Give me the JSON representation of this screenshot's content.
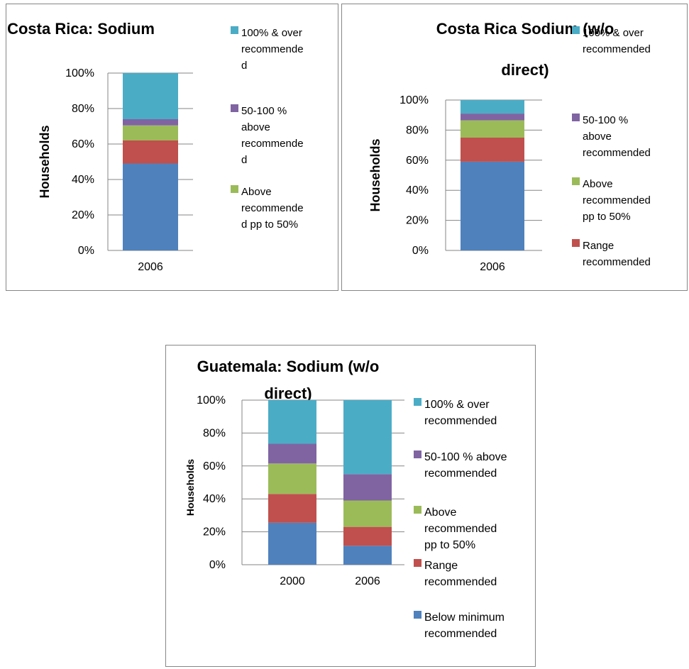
{
  "colors": {
    "below": "#4f81bd",
    "range": "#c0504d",
    "above_pp": "#9bbb59",
    "fifty_hundred": "#8064a2",
    "hundred_over": "#4bacc6",
    "axis": "#868686"
  },
  "chart_data": [
    {
      "type": "bar",
      "stacked": true,
      "title": "Costa Rica: Sodium",
      "ylabel": "Households",
      "xlabel": "",
      "ylim": [
        0,
        1
      ],
      "yticks": [
        "0%",
        "20%",
        "40%",
        "60%",
        "80%",
        "100%"
      ],
      "categories": [
        "2006"
      ],
      "series": [
        {
          "values": [
            0.49
          ],
          "color_key": "below"
        },
        {
          "values": [
            0.13
          ],
          "color_key": "range"
        },
        {
          "name": "Above recommended pp to 50%",
          "values": [
            0.085
          ],
          "color_key": "above_pp"
        },
        {
          "name": "50-100 % above recommended",
          "values": [
            0.035
          ],
          "color_key": "fifty_hundred"
        },
        {
          "name": "100% & over recommended",
          "values": [
            0.26
          ],
          "color_key": "hundred_over"
        }
      ],
      "legend_lines": [
        {
          "color_key": "hundred_over",
          "lines": [
            "100% & over",
            "recommende",
            "d"
          ]
        },
        {
          "color_key": "fifty_hundred",
          "lines": [
            "50-100 %",
            "above",
            "recommende",
            "d"
          ]
        },
        {
          "color_key": "above_pp",
          "lines": [
            "Above",
            "recommende",
            "d pp to 50%"
          ]
        }
      ]
    },
    {
      "type": "bar",
      "stacked": true,
      "title_lines": [
        "Costa Rica Sodium (w/o",
        "direct)"
      ],
      "ylabel": "Households",
      "xlabel": "",
      "ylim": [
        0,
        1
      ],
      "yticks": [
        "0%",
        "20%",
        "40%",
        "60%",
        "80%",
        "100%"
      ],
      "categories": [
        "2006"
      ],
      "series": [
        {
          "values": [
            0.59
          ],
          "color_key": "below"
        },
        {
          "name": "Range recommended",
          "values": [
            0.16
          ],
          "color_key": "range"
        },
        {
          "name": "Above recommended pp to 50%",
          "values": [
            0.115
          ],
          "color_key": "above_pp"
        },
        {
          "name": "50-100 % above recommended",
          "values": [
            0.045
          ],
          "color_key": "fifty_hundred"
        },
        {
          "name": "100% & over recommended",
          "values": [
            0.09
          ],
          "color_key": "hundred_over"
        }
      ],
      "legend_lines": [
        {
          "color_key": "hundred_over",
          "lines": [
            "100% & over",
            "recommended"
          ]
        },
        {
          "color_key": "fifty_hundred",
          "lines": [
            "50-100 %",
            "above",
            "recommended"
          ]
        },
        {
          "color_key": "above_pp",
          "lines": [
            "Above",
            "recommended",
            "pp to 50%"
          ]
        },
        {
          "color_key": "range",
          "lines": [
            "Range",
            "recommended"
          ]
        }
      ]
    },
    {
      "type": "bar",
      "stacked": true,
      "title_lines": [
        "Guatemala:  Sodium (w/o",
        "direct)"
      ],
      "ylabel": "Households",
      "xlabel": "",
      "ylim": [
        0,
        1
      ],
      "yticks": [
        "0%",
        "20%",
        "40%",
        "60%",
        "80%",
        "100%"
      ],
      "categories": [
        "2000",
        "2006"
      ],
      "series": [
        {
          "name": "Below minimum recommended",
          "values": [
            0.255,
            0.115
          ],
          "color_key": "below"
        },
        {
          "name": "Range recommended",
          "values": [
            0.175,
            0.115
          ],
          "color_key": "range"
        },
        {
          "name": "Above recommended pp to 50%",
          "values": [
            0.185,
            0.16
          ],
          "color_key": "above_pp"
        },
        {
          "name": "50-100 % above recommended",
          "values": [
            0.12,
            0.16
          ],
          "color_key": "fifty_hundred"
        },
        {
          "name": "100% & over recommended",
          "values": [
            0.265,
            0.45
          ],
          "color_key": "hundred_over"
        }
      ],
      "legend_lines": [
        {
          "color_key": "hundred_over",
          "lines": [
            "100% & over",
            "recommended"
          ]
        },
        {
          "color_key": "fifty_hundred",
          "lines": [
            "50-100 % above",
            "recommended"
          ]
        },
        {
          "color_key": "above_pp",
          "lines": [
            "Above",
            "recommended",
            "pp to 50%"
          ]
        },
        {
          "color_key": "range",
          "lines": [
            "Range",
            "recommended"
          ]
        },
        {
          "color_key": "below",
          "lines": [
            "Below minimum",
            "recommended"
          ]
        }
      ]
    }
  ]
}
